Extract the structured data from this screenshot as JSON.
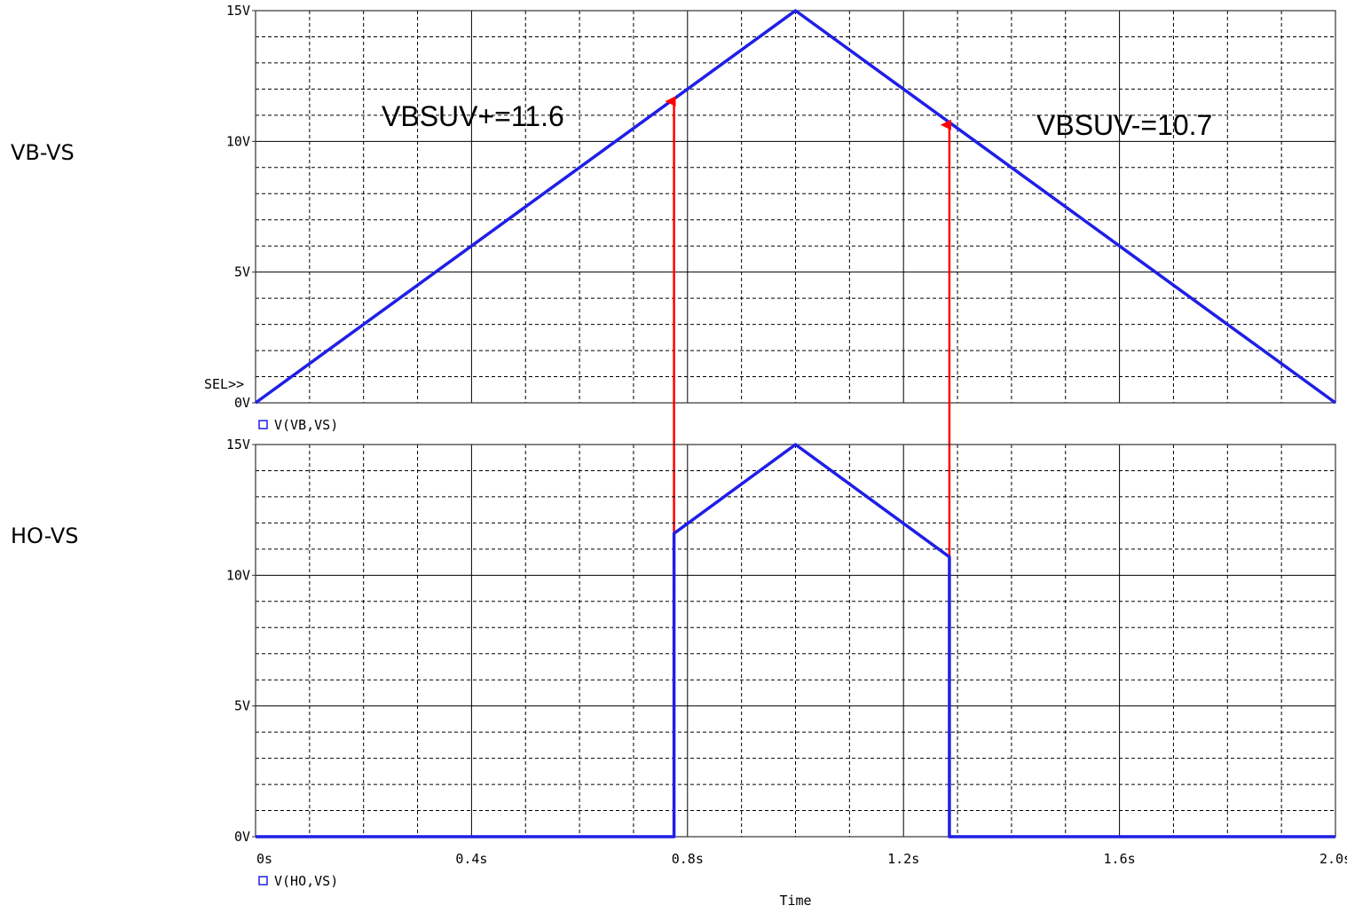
{
  "side_labels": {
    "top": "VB-VS",
    "bottom": "HO-VS"
  },
  "sel_marker": "SEL>>",
  "colors": {
    "trace": "#1f1fe6",
    "annotation": "#ff0000",
    "grid": "#000000",
    "background": "#ffffff"
  },
  "chart_data": [
    {
      "type": "line",
      "panel": "top",
      "title": "",
      "xlabel": "",
      "ylabel": "",
      "xlim": [
        0,
        2.0
      ],
      "ylim": [
        0,
        15
      ],
      "yticks": [
        0,
        5,
        10,
        15
      ],
      "ytick_labels": [
        "0V",
        "5V",
        "10V",
        "15V"
      ],
      "grid": true,
      "legend": "V(VB,VS)",
      "series": [
        {
          "name": "V(VB,VS)",
          "x": [
            0,
            1.0,
            2.0
          ],
          "y": [
            0,
            15,
            0
          ]
        }
      ],
      "annotations": [
        {
          "text": "VBSUV+=11.6",
          "x": 0.775,
          "y": 11.6
        },
        {
          "text": "VBSUV-=10.7",
          "x": 1.285,
          "y": 10.7
        }
      ]
    },
    {
      "type": "line",
      "panel": "bottom",
      "title": "",
      "xlabel": "Time",
      "ylabel": "",
      "xlim": [
        0,
        2.0
      ],
      "ylim": [
        0,
        15
      ],
      "xticks": [
        0,
        0.4,
        0.8,
        1.2,
        1.6,
        2.0
      ],
      "xtick_labels": [
        "0s",
        "0.4s",
        "0.8s",
        "1.2s",
        "1.6s",
        "2.0s"
      ],
      "yticks": [
        0,
        5,
        10,
        15
      ],
      "ytick_labels": [
        "0V",
        "5V",
        "10V",
        "15V"
      ],
      "grid": true,
      "legend": "V(HO,VS)",
      "series": [
        {
          "name": "V(HO,VS)",
          "x": [
            0,
            0.775,
            0.775,
            1.0,
            1.285,
            1.285,
            2.0
          ],
          "y": [
            0,
            0,
            11.6,
            15,
            10.7,
            0,
            0
          ]
        }
      ]
    }
  ]
}
